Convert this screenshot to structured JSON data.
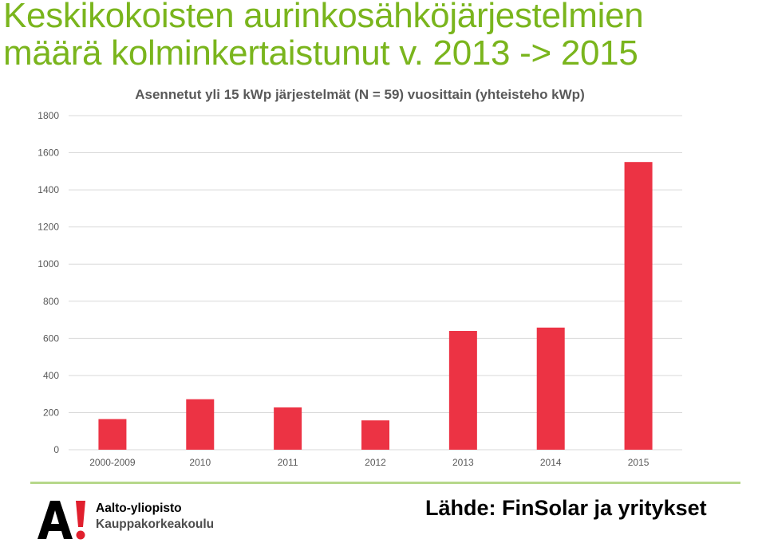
{
  "slide": {
    "title_line1": "Keskikokoisten aurinkosähköjärjestelmien",
    "title_line2": "määrä kolminkertaistunut v. 2013 -> 2015",
    "source": "Lähde: FinSolar ja yritykset"
  },
  "logo": {
    "mark_text": "A!",
    "line1": "Aalto-yliopisto",
    "line2": "Kauppakorkeakoulu"
  },
  "colors": {
    "title": "#7ab51d",
    "bar": "#ec3344",
    "grid": "#d9d9d9",
    "divider": "#b6d88a"
  },
  "chart_data": {
    "type": "bar",
    "title": "Asennetut yli 15 kWp järjestelmät (N = 59) vuosittain (yhteisteho kWp)",
    "xlabel": "",
    "ylabel": "",
    "categories": [
      "2000-2009",
      "2010",
      "2011",
      "2012",
      "2013",
      "2014",
      "2015"
    ],
    "values": [
      165,
      272,
      228,
      158,
      640,
      658,
      1550
    ],
    "ylim": [
      0,
      1800
    ],
    "yticks": [
      0,
      200,
      400,
      600,
      800,
      1000,
      1200,
      1400,
      1600,
      1800
    ],
    "grid": true,
    "legend": "none"
  }
}
